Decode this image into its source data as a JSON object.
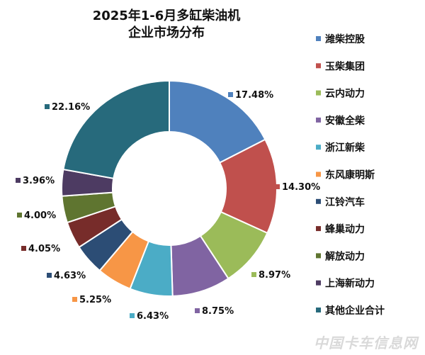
{
  "chart_data": {
    "type": "pie",
    "style": "donut",
    "title": "2025年1-6月多缸柴油机",
    "subtitle": "企业市场分布",
    "legend_position": "right",
    "slices": [
      {
        "label": "潍柴控股",
        "value": 17.48,
        "text": "17.48%",
        "color": "#4F81BD"
      },
      {
        "label": "玉柴集团",
        "value": 14.3,
        "text": "14.30%",
        "color": "#C0504D"
      },
      {
        "label": "云内动力",
        "value": 8.97,
        "text": "8.97%",
        "color": "#9BBB59"
      },
      {
        "label": "安徽全柴",
        "value": 8.75,
        "text": "8.75%",
        "color": "#8064A2"
      },
      {
        "label": "浙江新柴",
        "value": 6.43,
        "text": "6.43%",
        "color": "#4BACC6"
      },
      {
        "label": "东风康明斯",
        "value": 5.25,
        "text": "5.25%",
        "color": "#F79646"
      },
      {
        "label": "江铃汽车",
        "value": 4.63,
        "text": "4.63%",
        "color": "#2C4D75"
      },
      {
        "label": "蜂巢动力",
        "value": 4.05,
        "text": "4.05%",
        "color": "#772C2A"
      },
      {
        "label": "解放动力",
        "value": 4.0,
        "text": "4.00%",
        "color": "#5F7530"
      },
      {
        "label": "上海新动力",
        "value": 3.96,
        "text": "3.96%",
        "color": "#4D3B62"
      },
      {
        "label": "其他企业合计",
        "value": 22.16,
        "text": "22.16%",
        "color": "#276A7C"
      }
    ]
  },
  "watermark": "中国卡车信息网"
}
